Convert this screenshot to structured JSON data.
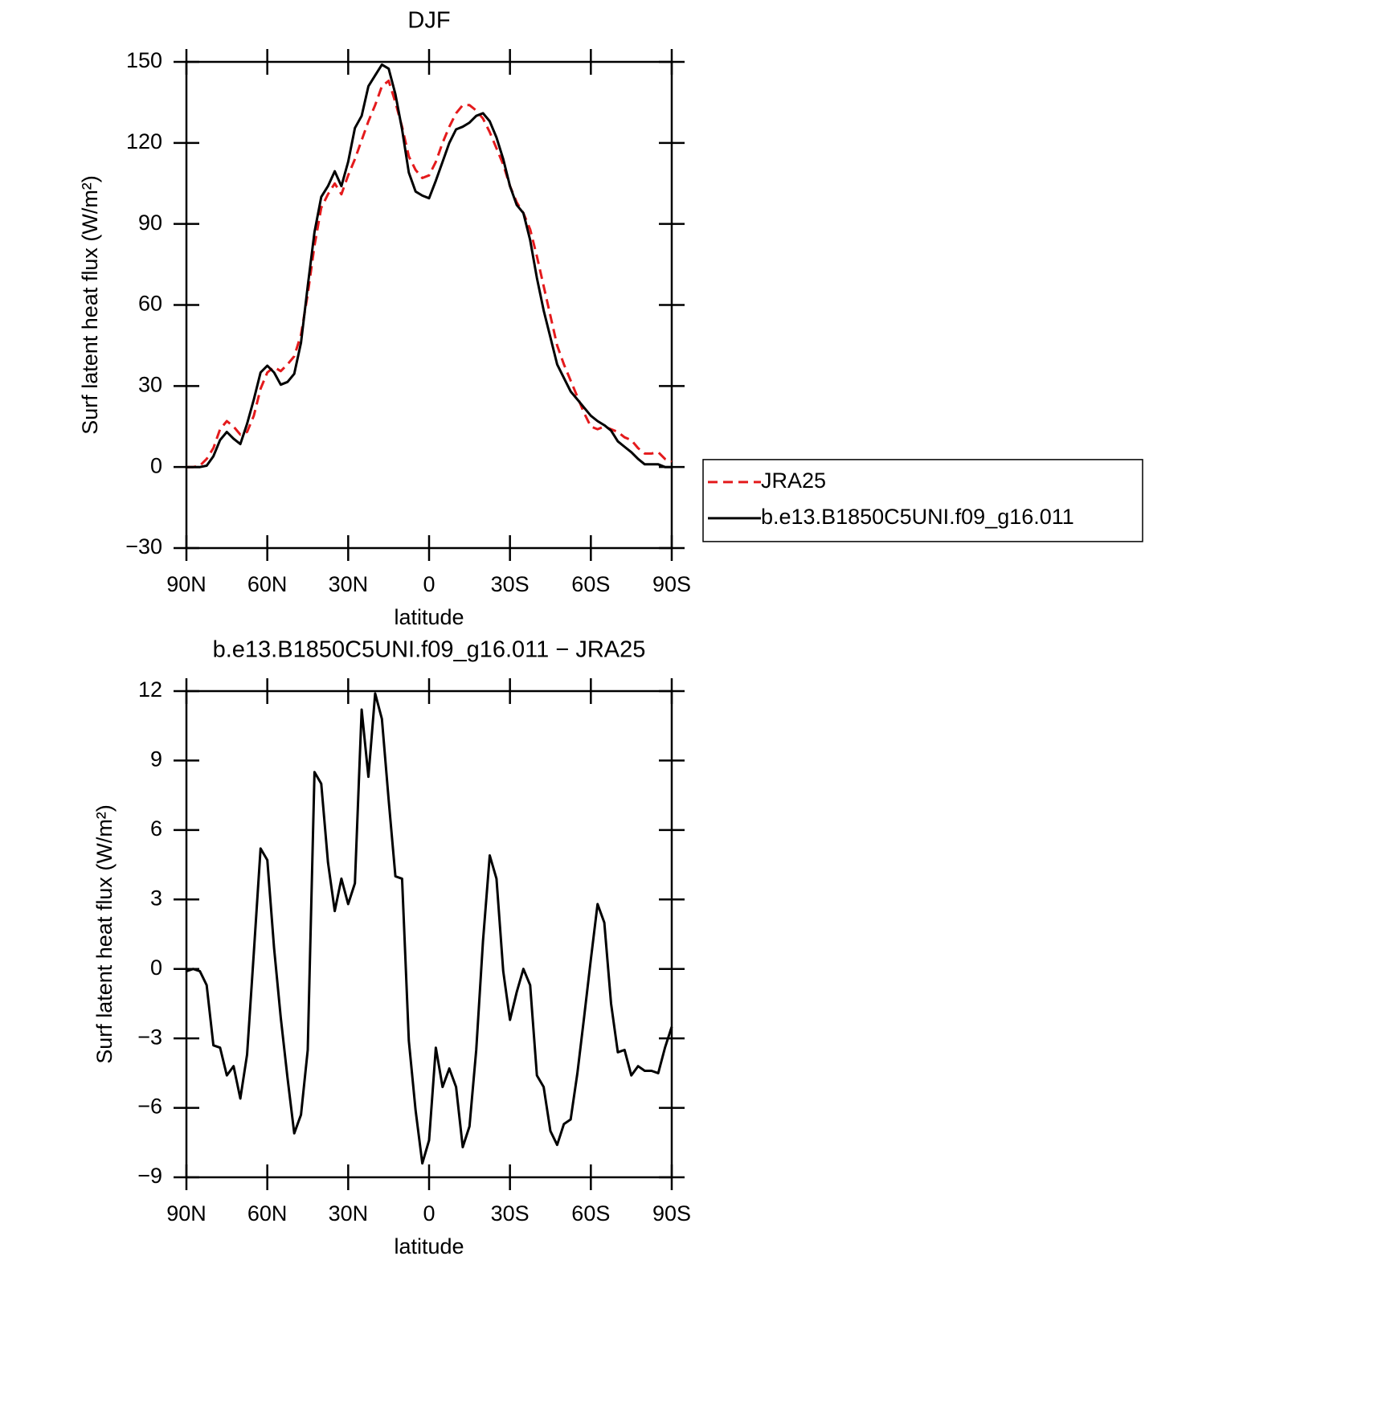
{
  "chart_data": [
    {
      "type": "line",
      "title": "DJF",
      "xlabel": "latitude",
      "ylabel": "Surf latent heat flux (W/m²)",
      "x": [
        90,
        87.5,
        85,
        82.5,
        80,
        77.5,
        75,
        72.5,
        70,
        67.5,
        65,
        62.5,
        60,
        57.5,
        55,
        52.5,
        50,
        47.5,
        45,
        42.5,
        40,
        37.5,
        35,
        32.5,
        30,
        27.5,
        25,
        22.5,
        20,
        17.5,
        15,
        12.5,
        10,
        7.5,
        5,
        2.5,
        0,
        -2.5,
        -5,
        -7.5,
        -10,
        -12.5,
        -15,
        -17.5,
        -20,
        -22.5,
        -25,
        -27.5,
        -30,
        -32.5,
        -35,
        -37.5,
        -40,
        -42.5,
        -45,
        -47.5,
        -50,
        -52.5,
        -55,
        -57.5,
        -60,
        -62.5,
        -65,
        -67.5,
        -70,
        -72.5,
        -75,
        -77.5,
        -80,
        -82.5,
        -85,
        -87.5,
        -90
      ],
      "xlim": [
        90,
        -90
      ],
      "xticks": [
        {
          "value": 90,
          "label": "90N"
        },
        {
          "value": 60,
          "label": "60N"
        },
        {
          "value": 30,
          "label": "30N"
        },
        0,
        {
          "value": -30,
          "label": "30S"
        },
        {
          "value": -60,
          "label": "60S"
        },
        {
          "value": -90,
          "label": "90S"
        }
      ],
      "ylim": [
        -30,
        150
      ],
      "yticks": [
        {
          "value": -30,
          "label": "−30"
        },
        0,
        30,
        60,
        90,
        120,
        150
      ],
      "legend": "right",
      "series": [
        {
          "name": "JRA25",
          "color": "#e41a1c",
          "dashed": true,
          "values": [
            0,
            0,
            0.5,
            3,
            7,
            14,
            17,
            15,
            12,
            13,
            19,
            29,
            35,
            37,
            35.5,
            38,
            41,
            49,
            64,
            82,
            96,
            101,
            105,
            101,
            108,
            114,
            121,
            128,
            134,
            141,
            143,
            135,
            126,
            115,
            110,
            107,
            108,
            113,
            120,
            126,
            131,
            134,
            134,
            132,
            129,
            124,
            118,
            112,
            104,
            98,
            94,
            88,
            78,
            67,
            56,
            45,
            38,
            32,
            26,
            20,
            15,
            14,
            15,
            14,
            13,
            11,
            10,
            7,
            5,
            5,
            5.5,
            3,
            2
          ]
        },
        {
          "name": "b.e13.B1850C5UNI.f09_g16.011",
          "color": "#000000",
          "dashed": false,
          "values": [
            0,
            0,
            0,
            0.5,
            4,
            10,
            13,
            10.5,
            8.5,
            16,
            25,
            35,
            37.5,
            35,
            30.5,
            31.5,
            34.5,
            46,
            67,
            87,
            100,
            104,
            109.5,
            104,
            113,
            125.5,
            130,
            141,
            145,
            149,
            147.5,
            138,
            125,
            109,
            102,
            100.5,
            99.5,
            106,
            113,
            120,
            125,
            126,
            127.5,
            130,
            131,
            128,
            122,
            114,
            104,
            97,
            94,
            84,
            70,
            58,
            48,
            38,
            33,
            28,
            25,
            22,
            19,
            17,
            15.5,
            13.5,
            9.5,
            7.5,
            5.5,
            3,
            1,
            1,
            1,
            0,
            0
          ]
        }
      ]
    },
    {
      "type": "line",
      "title": "b.e13.B1850C5UNI.f09_g16.011 − JRA25",
      "xlabel": "latitude",
      "ylabel": "Surf latent heat flux (W/m²)",
      "x": [
        90,
        87.5,
        85,
        82.5,
        80,
        77.5,
        75,
        72.5,
        70,
        67.5,
        65,
        62.5,
        60,
        57.5,
        55,
        52.5,
        50,
        47.5,
        45,
        42.5,
        40,
        37.5,
        35,
        32.5,
        30,
        27.5,
        25,
        22.5,
        20,
        17.5,
        15,
        12.5,
        10,
        7.5,
        5,
        2.5,
        0,
        -2.5,
        -5,
        -7.5,
        -10,
        -12.5,
        -15,
        -17.5,
        -20,
        -22.5,
        -25,
        -27.5,
        -30,
        -32.5,
        -35,
        -37.5,
        -40,
        -42.5,
        -45,
        -47.5,
        -50,
        -52.5,
        -55,
        -57.5,
        -60,
        -62.5,
        -65,
        -67.5,
        -70,
        -72.5,
        -75,
        -77.5,
        -80,
        -82.5,
        -85,
        -87.5,
        -90
      ],
      "xlim": [
        90,
        -90
      ],
      "xticks": [
        {
          "value": 90,
          "label": "90N"
        },
        {
          "value": 60,
          "label": "60N"
        },
        {
          "value": 30,
          "label": "30N"
        },
        0,
        {
          "value": -30,
          "label": "30S"
        },
        {
          "value": -60,
          "label": "60S"
        },
        {
          "value": -90,
          "label": "90S"
        }
      ],
      "ylim": [
        -9,
        12
      ],
      "yticks": [
        {
          "value": -9,
          "label": "−9"
        },
        {
          "value": -6,
          "label": "−6"
        },
        {
          "value": -3,
          "label": "−3"
        },
        0,
        3,
        6,
        9,
        12
      ],
      "color": "#000000",
      "values": [
        -0.1,
        0,
        -0.1,
        -0.7,
        -3.3,
        -3.4,
        -4.6,
        -4.2,
        -5.6,
        -3.7,
        0.7,
        5.2,
        4.7,
        0.9,
        -2.1,
        -4.7,
        -7.1,
        -6.3,
        -3.5,
        8.5,
        8,
        4.6,
        2.5,
        3.9,
        2.8,
        3.7,
        11.2,
        8.3,
        11.9,
        10.8,
        7.3,
        4,
        3.9,
        -3.1,
        -6.1,
        -8.4,
        -7.4,
        -3.4,
        -5.1,
        -4.3,
        -5.1,
        -7.7,
        -6.8,
        -3.5,
        1.2,
        4.9,
        3.9,
        -0.1,
        -2.2,
        -1,
        0,
        -0.7,
        -4.6,
        -5.1,
        -7,
        -7.6,
        -6.7,
        -6.5,
        -4.5,
        -2.1,
        0.4,
        2.8,
        2,
        -1.5,
        -3.6,
        -3.5,
        -4.6,
        -4.2,
        -4.4,
        -4.4,
        -4.5,
        -3.4,
        -2.5
      ]
    }
  ]
}
